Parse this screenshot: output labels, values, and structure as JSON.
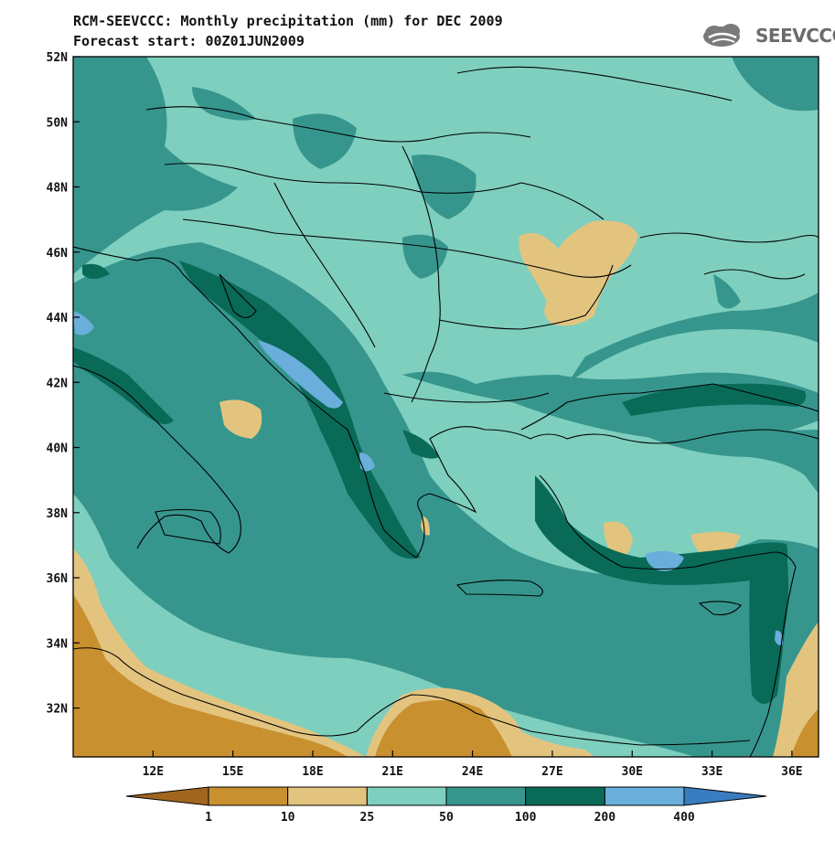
{
  "header": {
    "title": "RCM-SEEVCCC: Monthly precipitation (mm) for DEC 2009",
    "subtitle": "Forecast start: 00Z01JUN2009",
    "logo_text": "SEEVCCC"
  },
  "map": {
    "lon_range": [
      9,
      37
    ],
    "lat_range": [
      30.5,
      52
    ],
    "lat_ticks": [
      "52N",
      "50N",
      "48N",
      "46N",
      "44N",
      "42N",
      "40N",
      "38N",
      "36N",
      "34N",
      "32N"
    ],
    "lon_ticks": [
      "12E",
      "15E",
      "18E",
      "21E",
      "24E",
      "27E",
      "30E",
      "33E",
      "36E"
    ]
  },
  "colorbar": {
    "thresholds": [
      "1",
      "10",
      "25",
      "50",
      "100",
      "200",
      "400"
    ],
    "colors": [
      "#a0661e",
      "#c8902e",
      "#e3c47f",
      "#7ecfbe",
      "#36968e",
      "#096a58",
      "#6aaedb",
      "#3a7cc0"
    ]
  }
}
